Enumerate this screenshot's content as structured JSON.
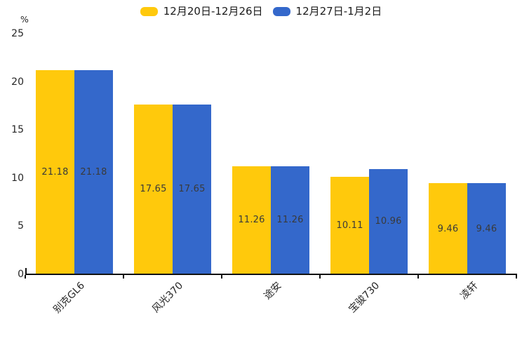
{
  "chart_data": {
    "type": "bar",
    "categories": [
      "别克GL6",
      "风光370",
      "途安",
      "宝骏730",
      "凌轩"
    ],
    "series": [
      {
        "name": "12月20日-12月26日",
        "color": "#ffc90c",
        "values": [
          21.18,
          17.65,
          11.26,
          10.11,
          9.46
        ]
      },
      {
        "name": "12月27日-1月2日",
        "color": "#3468cb",
        "values": [
          21.18,
          17.65,
          11.26,
          10.96,
          9.46
        ]
      }
    ],
    "ylabel": "%",
    "ylim": [
      0,
      25
    ],
    "yticks": [
      0,
      5,
      10,
      15,
      20,
      25
    ],
    "grid": false,
    "legend_position": "top-center",
    "bar_value_labels": true,
    "value_label_decimals": 2
  },
  "colors": {
    "background": "#ffffff",
    "axis": "#111111",
    "tick_label": "#262626",
    "value_label": "#3a3a3a"
  }
}
